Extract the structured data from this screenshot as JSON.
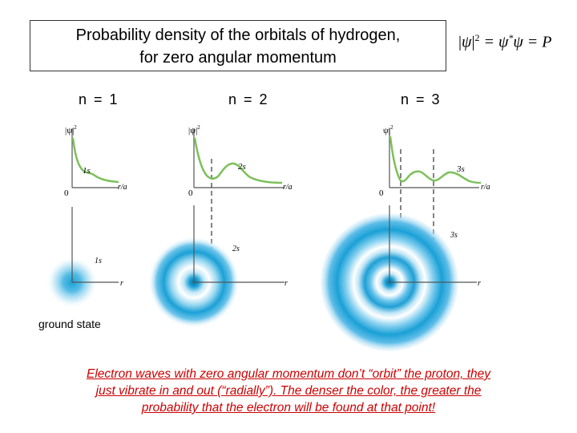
{
  "title": {
    "line1": "Probability density of the orbitals of hydrogen,",
    "line2": "for zero angular momentum"
  },
  "formula": {
    "psi": "ψ",
    "exponent": "2",
    "middle": " = ψ",
    "star": "*",
    "rest": "ψ = P"
  },
  "columns": [
    {
      "n_label": "n = 1",
      "y_label": "|ψ|",
      "y_label_exp": "2",
      "origin": "0",
      "x_label": "r/a",
      "curve_label": "1s",
      "density_label": "1s",
      "density_axis": "r"
    },
    {
      "n_label": "n = 2",
      "y_label": "|ψ|",
      "y_label_exp": "2",
      "origin": "0",
      "x_label": "r/a",
      "curve_label": "2s",
      "density_label": "2s",
      "density_axis": "r"
    },
    {
      "n_label": "n = 3",
      "y_label": "ψ|",
      "y_label_exp": "2",
      "origin": "0",
      "x_label": "r/a",
      "curve_label": "3s",
      "density_label": "3s",
      "density_axis": "r"
    }
  ],
  "ground_state": "ground state",
  "caption": {
    "line1": "Electron waves with zero angular momentum don’t “orbit” the proton, they",
    "line2": "just vibrate in and out (“radially”).  The denser the color, the greater the",
    "line3": "probability that the electron will be found at that point!"
  },
  "colors": {
    "curve": "#7cc05a",
    "cloud": "#1aa0d6",
    "caption": "#cc0000"
  }
}
